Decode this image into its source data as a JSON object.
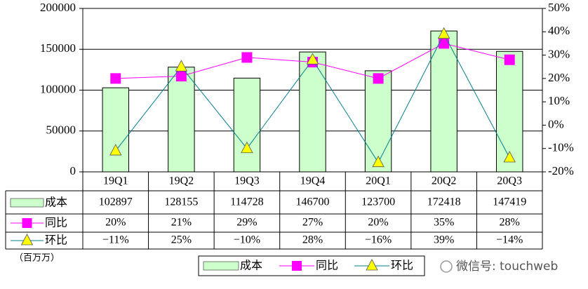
{
  "chart_data": {
    "type": "bar-line-table",
    "categories": [
      "19Q1",
      "19Q2",
      "19Q3",
      "19Q4",
      "20Q1",
      "20Q2",
      "20Q3"
    ],
    "series": [
      {
        "name": "成本",
        "type": "bar",
        "color": "#ccffcc",
        "values": [
          102897,
          128155,
          114728,
          146700,
          123700,
          172418,
          147419
        ]
      },
      {
        "name": "同比",
        "type": "line",
        "axis": "y2",
        "color": "#ff00ff",
        "marker": "square",
        "values": [
          20,
          21,
          29,
          27,
          20,
          35,
          28
        ],
        "value_labels": [
          "20%",
          "21%",
          "29%",
          "27%",
          "20%",
          "35%",
          "28%"
        ]
      },
      {
        "name": "环比",
        "type": "line",
        "axis": "y2",
        "color": "#00808a",
        "marker": "triangle",
        "marker_color": "#ffff00",
        "values": [
          -11,
          25,
          -10,
          28,
          -16,
          39,
          -14
        ],
        "value_labels": [
          "−11%",
          "25%",
          "−10%",
          "28%",
          "−16%",
          "39%",
          "−14%"
        ]
      }
    ],
    "ylim": [
      0,
      200000
    ],
    "yticks": [
      0,
      50000,
      100000,
      150000,
      200000
    ],
    "y2lim": [
      -20,
      50
    ],
    "y2ticks": [
      {
        "value": -20,
        "label": "-20%"
      },
      {
        "value": -10,
        "label": "-10%"
      },
      {
        "value": 0,
        "label": "0%"
      },
      {
        "value": 10,
        "label": "10%"
      },
      {
        "value": 20,
        "label": "20%"
      },
      {
        "value": 30,
        "label": "30%"
      },
      {
        "value": 40,
        "label": "40%"
      },
      {
        "value": 50,
        "label": "50%"
      }
    ],
    "grid": true,
    "annotations": [
      "（百万万）",
      "微信号: touchweb"
    ]
  }
}
